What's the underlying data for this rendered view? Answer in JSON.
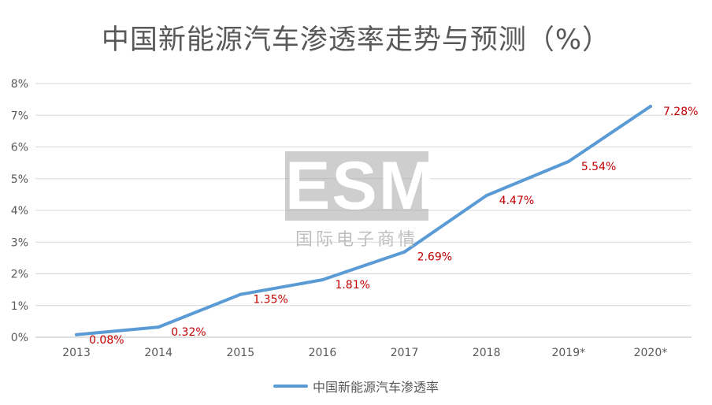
{
  "title": "中国新能源汽车渗透率走势与预测（%）",
  "watermark": {
    "logo": "ESM",
    "subtitle": "国际电子商情"
  },
  "chart_data": {
    "type": "line",
    "categories": [
      "2013",
      "2014",
      "2015",
      "2016",
      "2017",
      "2018",
      "2019*",
      "2020*"
    ],
    "series": [
      {
        "name": "中国新能源汽车渗透率",
        "values": [
          0.08,
          0.32,
          1.35,
          1.81,
          2.69,
          4.47,
          5.54,
          7.28
        ],
        "labels": [
          "0.08%",
          "0.32%",
          "1.35%",
          "1.81%",
          "2.69%",
          "4.47%",
          "5.54%",
          "7.28%"
        ],
        "color": "#5b9bd5",
        "label_color": "#c00000"
      }
    ],
    "ylim": [
      0,
      8
    ],
    "yticks": [
      "0%",
      "1%",
      "2%",
      "3%",
      "4%",
      "5%",
      "6%",
      "7%",
      "8%"
    ],
    "grid": true,
    "legend": "bottom",
    "xlabel": "",
    "ylabel": ""
  }
}
